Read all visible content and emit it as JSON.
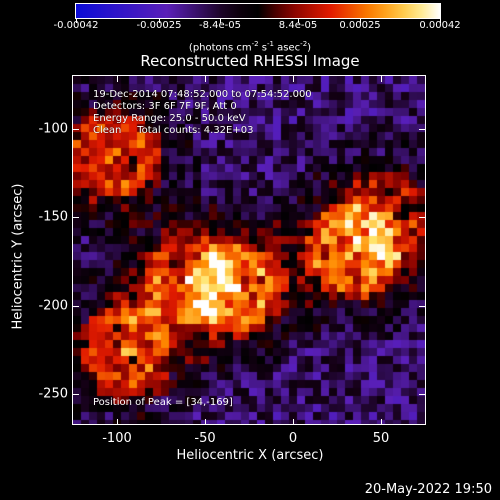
{
  "colorbar": {
    "ticks": [
      "-0.00042",
      "-0.00025",
      "-8.4e-05",
      "8.4e-05",
      "0.00025",
      "0.00042"
    ],
    "unit_prefix": "(photons cm",
    "unit_exp1": "-2",
    "unit_mid": " s",
    "unit_exp2": "-1",
    "unit_suffix": " asec",
    "unit_exp3": "-2",
    "unit_close": ")",
    "colors": [
      "#0b0bd6",
      "#5a1fb8",
      "#000000",
      "#7a0000",
      "#e21b00",
      "#ff8a00",
      "#ffe36a",
      "#ffffff"
    ]
  },
  "title": "Reconstructed RHESSI Image",
  "info": {
    "line1": "19-Dec-2014 07:48:52.000 to 07:54:52.000",
    "line2": "Detectors: 3F 6F 7F 9F, Att 0",
    "line3": "Energy Range: 25.0 - 50.0 keV",
    "line4": "Clean     Total counts: 4.32E+03"
  },
  "peak": "Position of Peak = [34,-169]",
  "axes": {
    "xlabel": "Heliocentric X (arcsec)",
    "ylabel": "Heliocentric Y (arcsec)",
    "xticks": [
      "-100",
      "-50",
      "0",
      "50"
    ],
    "yticks": [
      "-100",
      "-150",
      "-200",
      "-250"
    ]
  },
  "timestamp": "20-May-2022 19:50",
  "chart_data": {
    "type": "heatmap",
    "title": "Reconstructed RHESSI Image",
    "xlabel": "Heliocentric X (arcsec)",
    "ylabel": "Heliocentric Y (arcsec)",
    "xlim": [
      -125,
      75
    ],
    "ylim": [
      -267,
      -70
    ],
    "x_ticks": [
      -100,
      -50,
      0,
      50
    ],
    "y_ticks": [
      -100,
      -150,
      -200,
      -250
    ],
    "color_range": [
      -0.00042,
      0.00042
    ],
    "peak_position": [
      34,
      -169
    ],
    "sources": [
      {
        "x": -102,
        "y": -115,
        "strength": 0.95
      },
      {
        "x": -33,
        "y": -190,
        "strength": 1.0
      },
      {
        "x": 34,
        "y": -169,
        "strength": 1.0
      },
      {
        "x": -95,
        "y": -225,
        "strength": 0.95
      },
      {
        "x": -60,
        "y": -185,
        "strength": 0.7
      },
      {
        "x": 55,
        "y": -150,
        "strength": 0.6
      }
    ]
  }
}
